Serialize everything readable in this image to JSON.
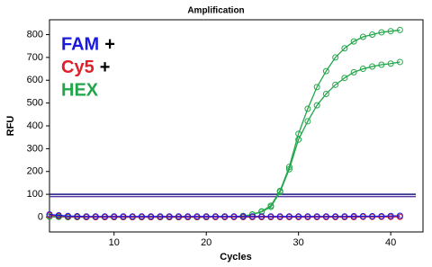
{
  "chart_data": {
    "type": "line",
    "title": "Amplification",
    "x_label": "Cycles",
    "y_label": "RFU",
    "x": [
      3,
      4,
      5,
      6,
      7,
      8,
      9,
      10,
      11,
      12,
      13,
      14,
      15,
      16,
      17,
      18,
      19,
      20,
      21,
      22,
      23,
      24,
      25,
      26,
      27,
      28,
      29,
      30,
      31,
      32,
      33,
      34,
      35,
      36,
      37,
      38,
      39,
      40,
      41
    ],
    "xlim": [
      3,
      43.5
    ],
    "xticks": [
      10,
      20,
      30,
      40
    ],
    "ylim": [
      -65,
      865
    ],
    "yticks": [
      0,
      100,
      200,
      300,
      400,
      500,
      600,
      700,
      800
    ],
    "legend": [
      {
        "label": "FAM",
        "suffix": "+",
        "color": "#1a1adc"
      },
      {
        "label": "Cy5",
        "suffix": "+",
        "color": "#e0202a"
      },
      {
        "label": "HEX",
        "color": "#22a64a"
      }
    ],
    "thresholds": [
      {
        "value": 100,
        "color": "#1a1a80"
      },
      {
        "value": 90,
        "color": "#5a3aa8"
      }
    ],
    "series": [
      {
        "color": "#22a64a",
        "values": [
          2,
          1,
          0,
          0,
          0,
          0,
          0,
          0,
          0,
          0,
          0,
          0,
          0,
          0,
          0,
          0,
          0,
          0,
          1,
          1,
          2,
          5,
          12,
          25,
          50,
          115,
          220,
          365,
          475,
          570,
          640,
          700,
          740,
          770,
          790,
          800,
          810,
          815,
          820
        ]
      },
      {
        "color": "#22a64a",
        "values": [
          2,
          1,
          0,
          0,
          0,
          0,
          0,
          0,
          0,
          0,
          0,
          0,
          0,
          0,
          0,
          0,
          0,
          0,
          1,
          1,
          2,
          5,
          11,
          23,
          45,
          110,
          210,
          340,
          420,
          490,
          540,
          580,
          610,
          635,
          650,
          660,
          668,
          673,
          680
        ]
      },
      {
        "color": "#e0202a",
        "values": [
          8,
          5,
          2,
          1,
          0,
          0,
          0,
          0,
          0,
          0,
          0,
          0,
          0,
          0,
          0,
          0,
          0,
          0,
          0,
          0,
          0,
          0,
          0,
          0,
          0,
          0,
          0,
          0,
          0,
          0,
          0,
          0,
          0,
          0,
          1,
          1,
          1,
          1,
          1
        ]
      },
      {
        "color": "#1a1adc",
        "values": [
          12,
          8,
          5,
          4,
          3,
          3,
          3,
          3,
          3,
          3,
          3,
          3,
          3,
          3,
          3,
          3,
          3,
          3,
          3,
          3,
          3,
          3,
          3,
          3,
          3,
          3,
          3,
          3,
          3,
          3,
          3,
          3,
          3,
          4,
          4,
          4,
          4,
          5,
          6
        ]
      }
    ]
  }
}
